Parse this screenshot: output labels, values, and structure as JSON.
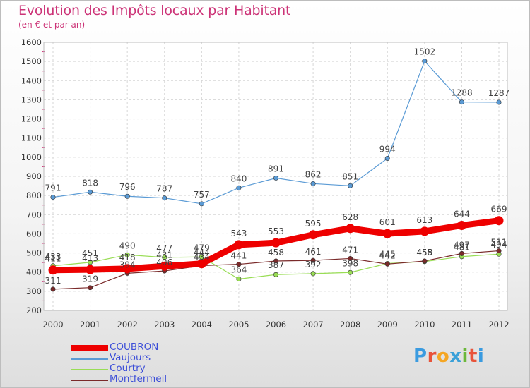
{
  "title": "Evolution des Impôts locaux par Habitant",
  "subtitle": "(en € et par an)",
  "logo": {
    "text": "Proxiti",
    "colors": [
      "#3a9be0",
      "#e8533a",
      "#f5a623",
      "#3aa0d8",
      "#6bb83a",
      "#e8533a",
      "#3a9be0"
    ]
  },
  "chart_data": {
    "type": "line",
    "x": [
      "2000",
      "2001",
      "2002",
      "2003",
      "2004",
      "2005",
      "2006",
      "2007",
      "2008",
      "2009",
      "2010",
      "2011",
      "2012"
    ],
    "ylim": [
      200,
      1600
    ],
    "yticks": [
      200,
      300,
      400,
      500,
      600,
      700,
      800,
      900,
      1000,
      1100,
      1200,
      1300,
      1400,
      1500,
      1600
    ],
    "grid": true,
    "legend_position": "bottom-left",
    "series": [
      {
        "name": "Vaujours",
        "color": "#5b9bd5",
        "values": [
          791,
          818,
          796,
          787,
          757,
          840,
          891,
          862,
          851,
          994,
          1502,
          1288,
          1287
        ]
      },
      {
        "name": "Courtry",
        "color": "#99dd55",
        "values": [
          433,
          451,
          490,
          477,
          479,
          364,
          387,
          392,
          398,
          445,
          455,
          481,
          494
        ]
      },
      {
        "name": "Montfermeil",
        "color": "#7a2a2a",
        "values": [
          311,
          319,
          394,
          406,
          434,
          441,
          458,
          461,
          471,
          442,
          458,
          497,
          511
        ]
      },
      {
        "name": "COUBRON",
        "color": "#ee0000",
        "values": [
          411,
          413,
          418,
          431,
          444,
          543,
          553,
          595,
          628,
          601,
          613,
          644,
          669
        ]
      }
    ]
  }
}
